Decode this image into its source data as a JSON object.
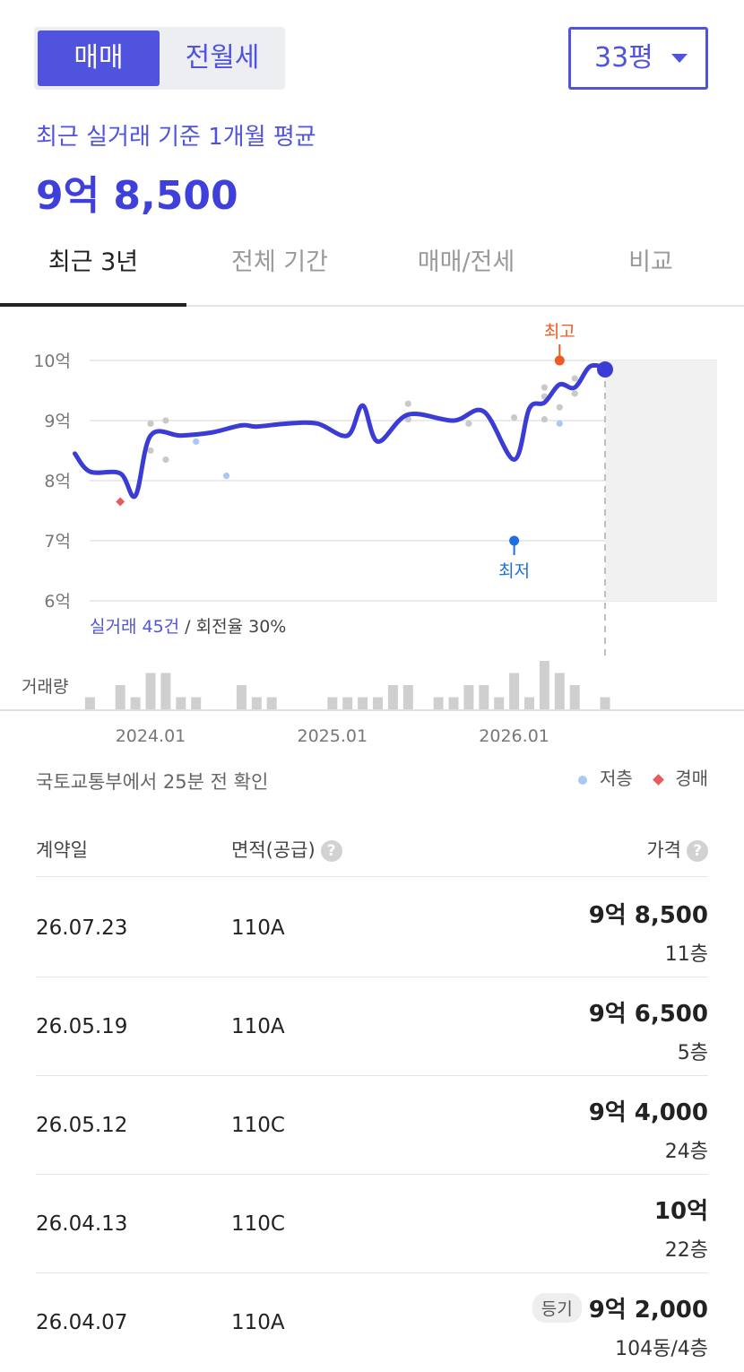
{
  "toggle": {
    "active": "매매",
    "inactive": "전월세"
  },
  "size_select": {
    "value": "33평"
  },
  "summary": {
    "subtitle": "최근 실거래 기준 1개월 평균",
    "price": "9억 8,500"
  },
  "tabs": [
    {
      "label": "최근 3년",
      "active": true
    },
    {
      "label": "전체 기간",
      "active": false
    },
    {
      "label": "매매/전세",
      "active": false
    },
    {
      "label": "비교",
      "active": false
    }
  ],
  "chart_data": {
    "type": "line",
    "y_unit": "억",
    "y_ticks": [
      "10억",
      "9억",
      "8억",
      "7억",
      "6억"
    ],
    "ylim": [
      6,
      10
    ],
    "x_ticks": [
      "2024.01",
      "2025.01",
      "2026.01"
    ],
    "high_label": "최고",
    "low_label": "최저",
    "line": [
      {
        "x": "2023.08",
        "y": 8.45
      },
      {
        "x": "2023.09",
        "y": 8.15
      },
      {
        "x": "2023.11",
        "y": 8.12
      },
      {
        "x": "2023.12",
        "y": 7.75
      },
      {
        "x": "2024.01",
        "y": 8.75
      },
      {
        "x": "2024.03",
        "y": 8.75
      },
      {
        "x": "2024.05",
        "y": 8.8
      },
      {
        "x": "2024.07",
        "y": 8.92
      },
      {
        "x": "2024.08",
        "y": 8.9
      },
      {
        "x": "2024.10",
        "y": 8.95
      },
      {
        "x": "2024.12",
        "y": 8.95
      },
      {
        "x": "2025.02",
        "y": 8.75
      },
      {
        "x": "2025.03",
        "y": 9.25
      },
      {
        "x": "2025.04",
        "y": 8.65
      },
      {
        "x": "2025.06",
        "y": 9.1
      },
      {
        "x": "2025.09",
        "y": 9.0
      },
      {
        "x": "2025.11",
        "y": 9.15
      },
      {
        "x": "2026.01",
        "y": 8.35
      },
      {
        "x": "2026.02",
        "y": 9.2
      },
      {
        "x": "2026.03",
        "y": 9.3
      },
      {
        "x": "2026.04",
        "y": 9.6
      },
      {
        "x": "2026.05",
        "y": 9.55
      },
      {
        "x": "2026.06",
        "y": 9.9
      },
      {
        "x": "2026.07",
        "y": 9.88
      }
    ],
    "transactions": [
      {
        "x": "2024.01",
        "y": 8.95,
        "kind": "normal"
      },
      {
        "x": "2024.01",
        "y": 8.5,
        "kind": "normal"
      },
      {
        "x": "2024.02",
        "y": 9.0,
        "kind": "normal"
      },
      {
        "x": "2024.02",
        "y": 8.35,
        "kind": "normal"
      },
      {
        "x": "2024.04",
        "y": 8.65,
        "kind": "low-floor"
      },
      {
        "x": "2024.06",
        "y": 8.08,
        "kind": "low-floor"
      },
      {
        "x": "2023.11",
        "y": 7.65,
        "kind": "auction"
      },
      {
        "x": "2025.06",
        "y": 9.28,
        "kind": "normal"
      },
      {
        "x": "2025.06",
        "y": 9.02,
        "kind": "normal"
      },
      {
        "x": "2025.10",
        "y": 8.95,
        "kind": "normal"
      },
      {
        "x": "2026.01",
        "y": 9.05,
        "kind": "normal"
      },
      {
        "x": "2026.03",
        "y": 9.55,
        "kind": "normal"
      },
      {
        "x": "2026.03",
        "y": 9.4,
        "kind": "normal"
      },
      {
        "x": "2026.03",
        "y": 9.02,
        "kind": "normal"
      },
      {
        "x": "2026.04",
        "y": 9.22,
        "kind": "normal"
      },
      {
        "x": "2026.04",
        "y": 8.95,
        "kind": "low-floor"
      },
      {
        "x": "2026.05",
        "y": 9.7,
        "kind": "normal"
      },
      {
        "x": "2026.05",
        "y": 9.45,
        "kind": "normal"
      }
    ],
    "high": {
      "x": "2026.04",
      "y": 10.0
    },
    "low": {
      "x": "2026.01",
      "y": 7.0
    },
    "latest": {
      "x": "2026.07",
      "y": 9.85
    },
    "volume_label": "거래량",
    "volume": [
      {
        "x": "2023.09",
        "v": 1
      },
      {
        "x": "2023.11",
        "v": 2
      },
      {
        "x": "2023.12",
        "v": 1
      },
      {
        "x": "2024.01",
        "v": 3
      },
      {
        "x": "2024.02",
        "v": 3
      },
      {
        "x": "2024.03",
        "v": 1
      },
      {
        "x": "2024.04",
        "v": 1
      },
      {
        "x": "2024.07",
        "v": 2
      },
      {
        "x": "2024.08",
        "v": 1
      },
      {
        "x": "2024.09",
        "v": 1
      },
      {
        "x": "2025.01",
        "v": 1
      },
      {
        "x": "2025.02",
        "v": 1
      },
      {
        "x": "2025.03",
        "v": 1
      },
      {
        "x": "2025.04",
        "v": 1
      },
      {
        "x": "2025.05",
        "v": 2
      },
      {
        "x": "2025.06",
        "v": 2
      },
      {
        "x": "2025.08",
        "v": 1
      },
      {
        "x": "2025.09",
        "v": 1
      },
      {
        "x": "2025.10",
        "v": 2
      },
      {
        "x": "2025.11",
        "v": 2
      },
      {
        "x": "2025.12",
        "v": 1
      },
      {
        "x": "2026.01",
        "v": 3
      },
      {
        "x": "2026.02",
        "v": 1
      },
      {
        "x": "2026.03",
        "v": 4
      },
      {
        "x": "2026.04",
        "v": 3
      },
      {
        "x": "2026.05",
        "v": 2
      },
      {
        "x": "2026.07",
        "v": 1
      }
    ],
    "caption_highlight": "실거래 45건",
    "caption_rest": " / 회전율 30%"
  },
  "source_note": "국토교통부에서 25분 전 확인",
  "legend": {
    "low_floor": "저층",
    "auction": "경매"
  },
  "colors": {
    "accent": "#4f53de",
    "line": "#3b3bd6",
    "high": "#f05a22",
    "low": "#1f6fe0",
    "low_floor": "#a9c8f3",
    "auction": "#e95a5a"
  },
  "table": {
    "headers": {
      "date": "계약일",
      "area": "면적(공급)",
      "price": "가격",
      "help_icon": "?"
    },
    "rows": [
      {
        "date": "26.07.23",
        "area": "110A",
        "price": "9억 8,500",
        "floor": "11층",
        "tag": ""
      },
      {
        "date": "26.05.19",
        "area": "110A",
        "price": "9억 6,500",
        "floor": "5층",
        "tag": ""
      },
      {
        "date": "26.05.12",
        "area": "110C",
        "price": "9억 4,000",
        "floor": "24층",
        "tag": ""
      },
      {
        "date": "26.04.13",
        "area": "110C",
        "price": "10억",
        "floor": "22층",
        "tag": ""
      },
      {
        "date": "26.04.07",
        "area": "110A",
        "price": "9억 2,000",
        "floor": "104동/4층",
        "tag": "등기"
      }
    ]
  }
}
